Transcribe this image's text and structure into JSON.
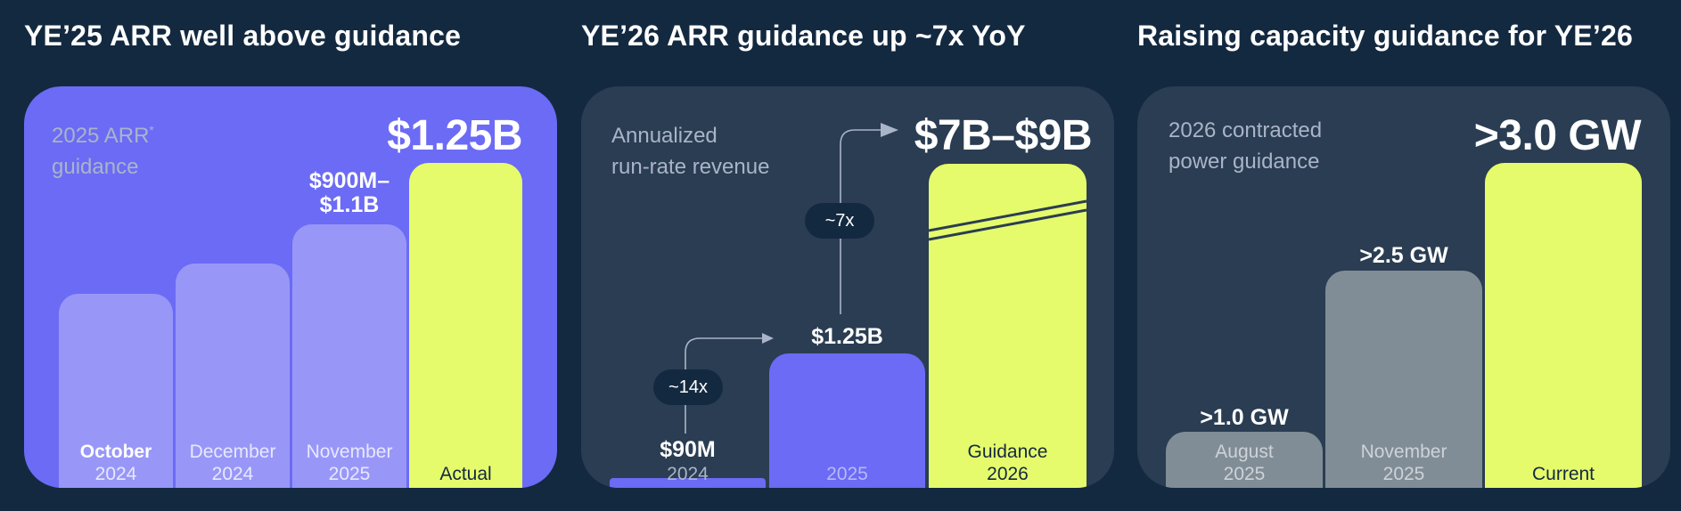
{
  "colors": {
    "background": "#132940",
    "card_purple": "#6b6bf5",
    "card_slate": "#2a3d52",
    "bar_light_purple": "#9897f8",
    "bar_purple": "#6b6bf5",
    "bar_yellow_green": "#e6fb6c",
    "bar_gray": "#808d96",
    "caption": "#aab4c8"
  },
  "chart_data": [
    {
      "type": "bar",
      "title": "YE’25 ARR well above guidance",
      "caption_line1": "2025 ARR",
      "caption_mark": "*",
      "caption_line2": "guidance",
      "headline": "$1.25B",
      "bars": [
        {
          "cat1": "October",
          "cat2": "2024",
          "value": 0.74,
          "label1": "",
          "label2": ""
        },
        {
          "cat1": "December",
          "cat2": "2024",
          "value": 0.8,
          "label1": "",
          "label2": ""
        },
        {
          "cat1": "November",
          "cat2": "2025",
          "value": 1.0,
          "label1": "$900M–",
          "label2": "$1.1B"
        },
        {
          "cat1": "Actual",
          "cat2": "",
          "value": 1.25,
          "label1": "",
          "label2": ""
        }
      ]
    },
    {
      "type": "bar",
      "title": "YE’26 ARR guidance up ~7x YoY",
      "caption_line1": "Annualized",
      "caption_line2": "run-rate revenue",
      "headline": "$7B–$9B",
      "bars": [
        {
          "cat1": "2024",
          "cat2": "",
          "value": 0.09,
          "label1": "$90M",
          "label2": ""
        },
        {
          "cat1": "2025",
          "cat2": "",
          "value": 1.25,
          "label1": "$1.25B",
          "label2": ""
        },
        {
          "cat1": "Guidance",
          "cat2": "2026",
          "value": 9,
          "label1": "",
          "label2": ""
        }
      ],
      "multipliers": [
        "~14x",
        "~7x"
      ]
    },
    {
      "type": "bar",
      "title": "Raising capacity guidance for YE’26",
      "caption_line1": "2026 contracted",
      "caption_line2": "power guidance",
      "headline": ">3.0 GW",
      "bars": [
        {
          "cat1": "August",
          "cat2": "2025",
          "value": 1.0,
          "label1": ">1.0 GW",
          "label2": ""
        },
        {
          "cat1": "November",
          "cat2": "2025",
          "value": 2.5,
          "label1": ">2.5 GW",
          "label2": ""
        },
        {
          "cat1": "Current",
          "cat2": "",
          "value": 3.0,
          "label1": "",
          "label2": ""
        }
      ]
    }
  ]
}
